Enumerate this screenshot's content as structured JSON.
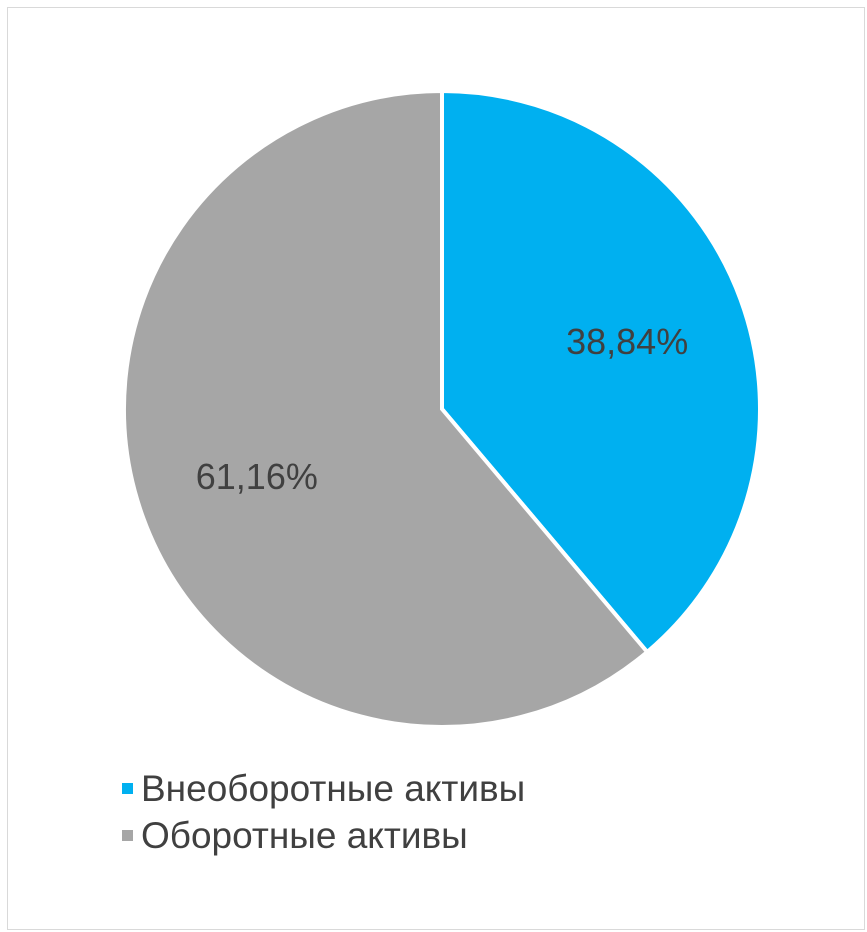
{
  "chart_data": {
    "type": "pie",
    "title": "",
    "slices": [
      {
        "name": "Внеоборотные активы",
        "value": 38.84,
        "label": "38,84%",
        "color": "#00b0f0"
      },
      {
        "name": "Оборотные активы",
        "value": 61.16,
        "label": "61,16%",
        "color": "#a6a6a6"
      }
    ],
    "start_angle_deg": 0,
    "direction": "clockwise",
    "legend_position": "bottom-left"
  }
}
